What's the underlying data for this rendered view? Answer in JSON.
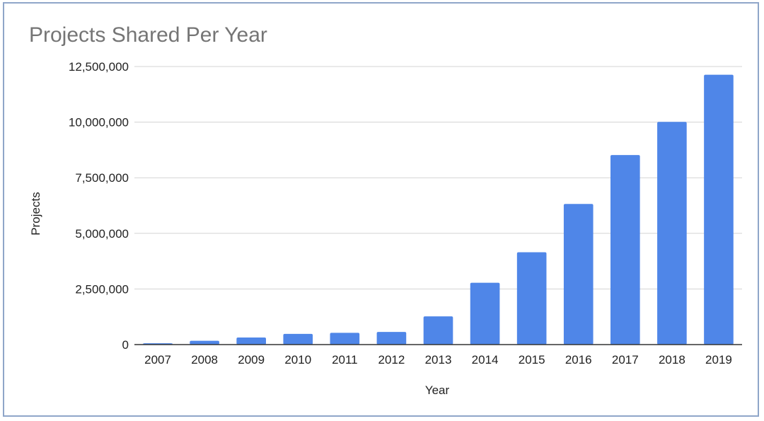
{
  "chart_data": {
    "type": "bar",
    "title": "Projects Shared Per Year",
    "xlabel": "Year",
    "ylabel": "Projects",
    "categories": [
      "2007",
      "2008",
      "2009",
      "2010",
      "2011",
      "2012",
      "2013",
      "2014",
      "2015",
      "2016",
      "2017",
      "2018",
      "2019"
    ],
    "values": [
      60000,
      170000,
      320000,
      480000,
      530000,
      570000,
      1270000,
      2780000,
      4150000,
      6320000,
      8520000,
      10010000,
      12130000
    ],
    "ylim": [
      0,
      12500000
    ],
    "yticks": [
      0,
      2500000,
      5000000,
      7500000,
      10000000,
      12500000
    ],
    "ytick_labels": [
      "0",
      "2,500,000",
      "5,000,000",
      "7,500,000",
      "10,000,000",
      "12,500,000"
    ],
    "grid": true,
    "legend": "none",
    "bar_color": "#4f86e8"
  }
}
